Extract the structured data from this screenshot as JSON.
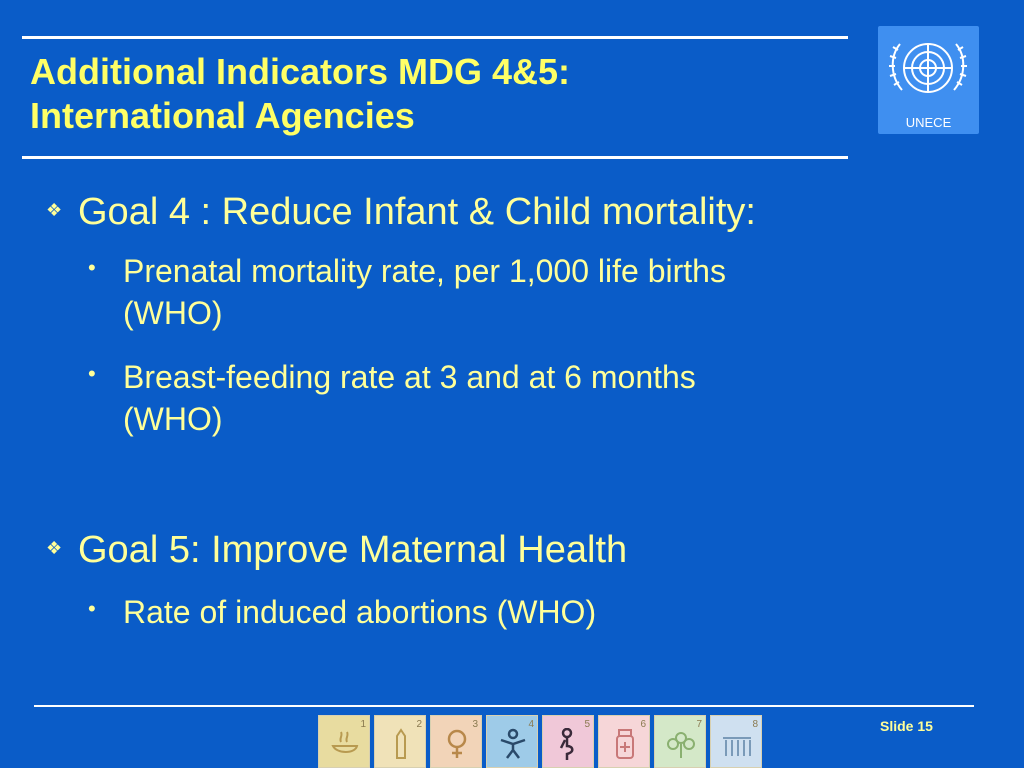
{
  "title": {
    "line1": "Additional Indicators MDG 4&5:",
    "line2": "International Agencies"
  },
  "logo": {
    "label": "UNECE",
    "icon": "un-emblem-icon"
  },
  "content": {
    "goal4": {
      "heading": "Goal 4 : Reduce Infant & Child mortality:",
      "items": [
        {
          "line1": "Prenatal mortality rate, per 1,000 life births",
          "line2": "(WHO)"
        },
        {
          "line1": "Breast-feeding rate at 3 and at 6 months",
          "line2": "(WHO)"
        }
      ]
    },
    "goal5": {
      "heading": "Goal 5: Improve Maternal Health",
      "items": [
        {
          "line1": "Rate of induced abortions (WHO)"
        }
      ]
    }
  },
  "footer": {
    "slide_label": "Slide 15",
    "mdg_icons": [
      {
        "number": "1",
        "icon": "bowl-icon",
        "color": "#e8dca0"
      },
      {
        "number": "2",
        "icon": "pencil-icon",
        "color": "#f0e2b8"
      },
      {
        "number": "3",
        "icon": "female-symbol-icon",
        "color": "#f2d4b8"
      },
      {
        "number": "4",
        "icon": "child-icon",
        "color": "#9ecbe8"
      },
      {
        "number": "5",
        "icon": "pregnant-woman-icon",
        "color": "#f0c8d8"
      },
      {
        "number": "6",
        "icon": "medicine-icon",
        "color": "#f6d6d8"
      },
      {
        "number": "7",
        "icon": "plant-icon",
        "color": "#d4e8c8"
      },
      {
        "number": "8",
        "icon": "people-icon",
        "color": "#cfe0f0"
      }
    ]
  },
  "colors": {
    "background": "#0a5cc8",
    "title": "#ffff66",
    "body_text": "#ffff99",
    "rules": "#ffffff"
  }
}
